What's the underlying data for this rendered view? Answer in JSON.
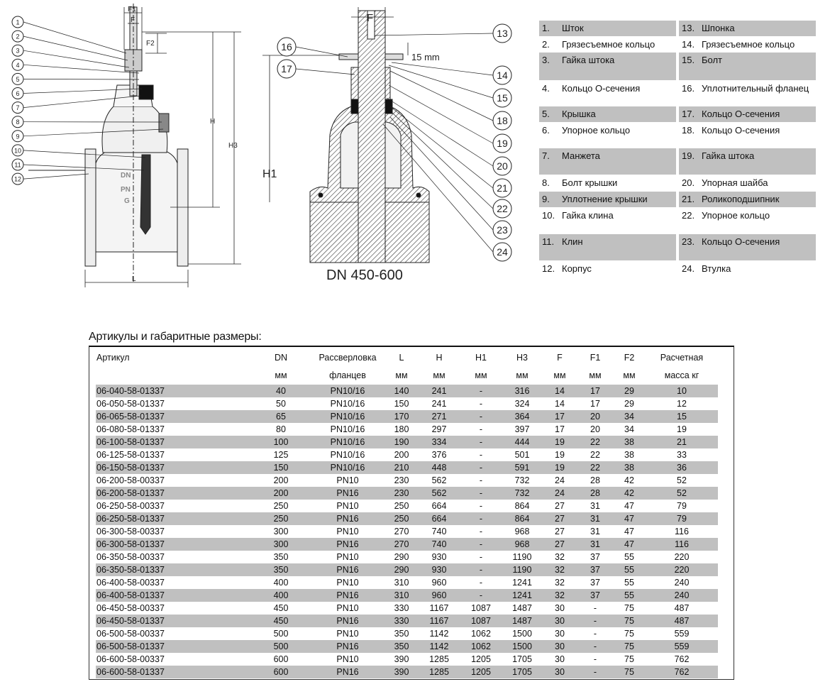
{
  "drawing_left": {
    "callouts": [
      "1",
      "2",
      "3",
      "4",
      "5",
      "6",
      "7",
      "8",
      "9",
      "10",
      "11",
      "12"
    ],
    "dims": {
      "F1": "F1",
      "F": "F",
      "F2": "F2",
      "H": "H",
      "H3": "H3",
      "L": "L"
    },
    "cast_marks": [
      "DN",
      "PN",
      "G"
    ]
  },
  "drawing_right": {
    "callouts_left": [
      "16",
      "17"
    ],
    "callouts_right": [
      "13",
      "14",
      "15",
      "18",
      "19",
      "20",
      "21",
      "22",
      "23",
      "24"
    ],
    "dims": {
      "F": "F",
      "H1": "H1",
      "gap": "15 mm"
    },
    "caption": "DN 450-600"
  },
  "parts": [
    [
      {
        "n": "1.",
        "t": "Шток"
      },
      {
        "n": "13.",
        "t": "Шпонка"
      }
    ],
    [
      {
        "n": "2.",
        "t": "Грязесъемное кольцо"
      },
      {
        "n": "14.",
        "t": "Грязесъемное кольцо"
      }
    ],
    [
      {
        "n": "3.",
        "t": "Гайка штока"
      },
      {
        "n": "15.",
        "t": "Болт"
      }
    ],
    [
      {
        "n": "4.",
        "t": "Кольцо О-сечения"
      },
      {
        "n": "16.",
        "t": "Уплотнительный фланец"
      }
    ],
    [
      {
        "n": "5.",
        "t": "Крышка"
      },
      {
        "n": "17.",
        "t": "Кольцо О-сечения"
      }
    ],
    [
      {
        "n": "6.",
        "t": "Упорное кольцо"
      },
      {
        "n": "18.",
        "t": "Кольцо О-сечения"
      }
    ],
    [
      {
        "n": "7.",
        "t": "Манжета"
      },
      {
        "n": "19.",
        "t": "Гайка штока"
      }
    ],
    [
      {
        "n": "8.",
        "t": "Болт крышки"
      },
      {
        "n": "20.",
        "t": "Упорная шайба"
      }
    ],
    [
      {
        "n": "9.",
        "t": "Уплотнение крышки"
      },
      {
        "n": "21.",
        "t": "Роликоподшипник"
      }
    ],
    [
      {
        "n": "10.",
        "t": "Гайка клина"
      },
      {
        "n": "22.",
        "t": "Упорное кольцо"
      }
    ],
    [
      {
        "n": "11.",
        "t": "Клин"
      },
      {
        "n": "23.",
        "t": "Кольцо О-сечения"
      }
    ],
    [
      {
        "n": "12.",
        "t": "Корпус"
      },
      {
        "n": "24.",
        "t": "Втулка"
      }
    ]
  ],
  "table": {
    "title": "Артикулы и габаритные размеры:",
    "header1": [
      "Артикул",
      "DN",
      "Рассверловка",
      "L",
      "H",
      "H1",
      "H3",
      "F",
      "F1",
      "F2",
      "Расчетная"
    ],
    "header2": [
      "",
      "мм",
      "фланцев",
      "мм",
      "мм",
      "мм",
      "мм",
      "мм",
      "мм",
      "мм",
      "масса кг"
    ],
    "rows": [
      [
        "06-040-58-01337",
        "40",
        "PN10/16",
        "140",
        "241",
        "-",
        "316",
        "14",
        "17",
        "29",
        "10"
      ],
      [
        "06-050-58-01337",
        "50",
        "PN10/16",
        "150",
        "241",
        "-",
        "324",
        "14",
        "17",
        "29",
        "12"
      ],
      [
        "06-065-58-01337",
        "65",
        "PN10/16",
        "170",
        "271",
        "-",
        "364",
        "17",
        "20",
        "34",
        "15"
      ],
      [
        "06-080-58-01337",
        "80",
        "PN10/16",
        "180",
        "297",
        "-",
        "397",
        "17",
        "20",
        "34",
        "19"
      ],
      [
        "06-100-58-01337",
        "100",
        "PN10/16",
        "190",
        "334",
        "-",
        "444",
        "19",
        "22",
        "38",
        "21"
      ],
      [
        "06-125-58-01337",
        "125",
        "PN10/16",
        "200",
        "376",
        "-",
        "501",
        "19",
        "22",
        "38",
        "33"
      ],
      [
        "06-150-58-01337",
        "150",
        "PN10/16",
        "210",
        "448",
        "-",
        "591",
        "19",
        "22",
        "38",
        "36"
      ],
      [
        "06-200-58-00337",
        "200",
        "PN10",
        "230",
        "562",
        "-",
        "732",
        "24",
        "28",
        "42",
        "52"
      ],
      [
        "06-200-58-01337",
        "200",
        "PN16",
        "230",
        "562",
        "-",
        "732",
        "24",
        "28",
        "42",
        "52"
      ],
      [
        "06-250-58-00337",
        "250",
        "PN10",
        "250",
        "664",
        "-",
        "864",
        "27",
        "31",
        "47",
        "79"
      ],
      [
        "06-250-58-01337",
        "250",
        "PN16",
        "250",
        "664",
        "-",
        "864",
        "27",
        "31",
        "47",
        "79"
      ],
      [
        "06-300-58-00337",
        "300",
        "PN10",
        "270",
        "740",
        "-",
        "968",
        "27",
        "31",
        "47",
        "116"
      ],
      [
        "06-300-58-01337",
        "300",
        "PN16",
        "270",
        "740",
        "-",
        "968",
        "27",
        "31",
        "47",
        "116"
      ],
      [
        "06-350-58-00337",
        "350",
        "PN10",
        "290",
        "930",
        "-",
        "1190",
        "32",
        "37",
        "55",
        "220"
      ],
      [
        "06-350-58-01337",
        "350",
        "PN16",
        "290",
        "930",
        "-",
        "1190",
        "32",
        "37",
        "55",
        "220"
      ],
      [
        "06-400-58-00337",
        "400",
        "PN10",
        "310",
        "960",
        "-",
        "1241",
        "32",
        "37",
        "55",
        "240"
      ],
      [
        "06-400-58-01337",
        "400",
        "PN16",
        "310",
        "960",
        "-",
        "1241",
        "32",
        "37",
        "55",
        "240"
      ],
      [
        "06-450-58-00337",
        "450",
        "PN10",
        "330",
        "1167",
        "1087",
        "1487",
        "30",
        "-",
        "75",
        "487"
      ],
      [
        "06-450-58-01337",
        "450",
        "PN16",
        "330",
        "1167",
        "1087",
        "1487",
        "30",
        "-",
        "75",
        "487"
      ],
      [
        "06-500-58-00337",
        "500",
        "PN10",
        "350",
        "1142",
        "1062",
        "1500",
        "30",
        "-",
        "75",
        "559"
      ],
      [
        "06-500-58-01337",
        "500",
        "PN16",
        "350",
        "1142",
        "1062",
        "1500",
        "30",
        "-",
        "75",
        "559"
      ],
      [
        "06-600-58-00337",
        "600",
        "PN10",
        "390",
        "1285",
        "1205",
        "1705",
        "30",
        "-",
        "75",
        "762"
      ],
      [
        "06-600-58-01337",
        "600",
        "PN16",
        "390",
        "1285",
        "1205",
        "1705",
        "30",
        "-",
        "75",
        "762"
      ]
    ]
  }
}
